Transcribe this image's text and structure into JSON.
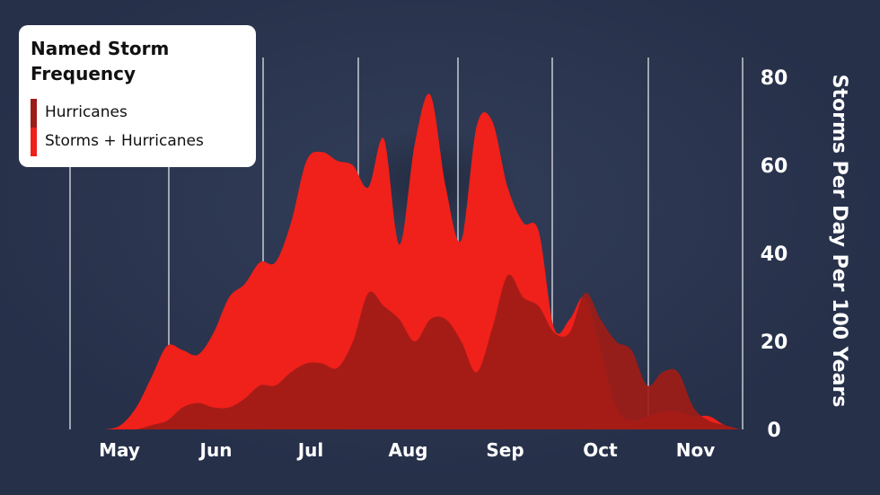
{
  "chart_data": {
    "type": "area",
    "title": "Named Storm Frequency",
    "ylabel": "Storms Per Day Per 100 Years",
    "ylim": [
      0,
      80
    ],
    "yticks": [
      0,
      20,
      40,
      60,
      80
    ],
    "y_axis_side": "right",
    "grid": "vertical month dividers",
    "legend_position": "top-left",
    "months": [
      "May",
      "Jun",
      "Jul",
      "Aug",
      "Sep",
      "Oct",
      "Nov"
    ],
    "x_unit": "day (May 1 = 0)",
    "x": [
      0,
      5,
      10,
      15,
      20,
      25,
      30,
      35,
      40,
      45,
      50,
      55,
      60,
      65,
      70,
      75,
      80,
      85,
      90,
      95,
      100,
      105,
      110,
      115,
      120,
      125,
      130,
      135,
      140,
      145,
      150,
      155,
      160,
      165,
      170,
      175,
      180,
      185,
      190,
      195,
      200,
      205,
      210
    ],
    "series": [
      {
        "name": "Hurricanes",
        "color": "#9e1c17",
        "values": [
          0,
          0,
          0,
          0,
          1,
          2,
          5,
          6,
          5,
          5,
          7,
          10,
          10,
          13,
          15,
          15,
          14,
          20,
          31,
          28,
          25,
          20,
          25,
          25,
          20,
          13,
          23,
          35,
          30,
          28,
          22,
          22,
          31,
          25,
          20,
          18,
          10,
          13,
          13,
          5,
          2,
          1,
          0
        ]
      },
      {
        "name": "Storms + Hurricanes",
        "color": "#f0201a",
        "values": [
          0,
          0,
          1,
          5,
          12,
          19,
          18,
          17,
          22,
          30,
          33,
          38,
          38,
          47,
          61,
          63,
          61,
          60,
          55,
          66,
          42,
          65,
          76,
          55,
          43,
          69,
          70,
          55,
          47,
          45,
          23,
          25,
          30,
          18,
          5,
          2,
          3,
          4,
          4,
          3,
          3,
          1,
          0
        ]
      }
    ]
  }
}
